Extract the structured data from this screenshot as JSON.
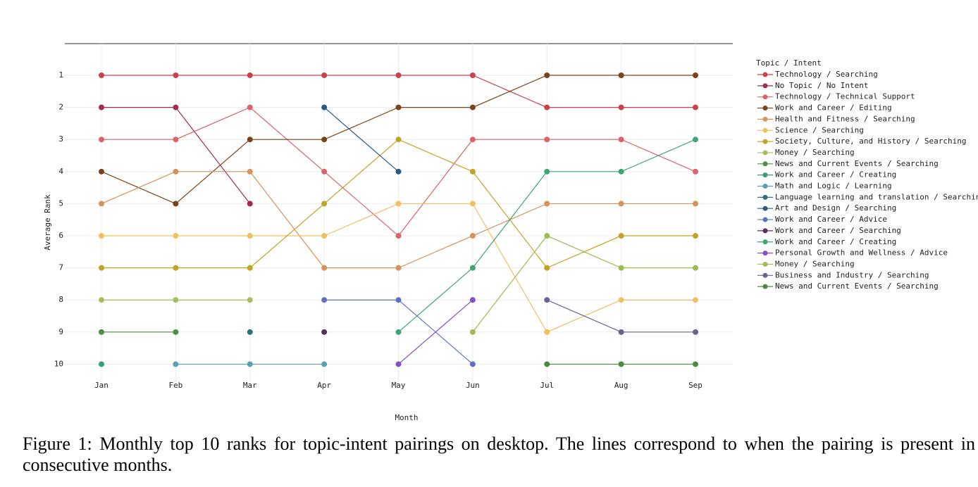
{
  "chart_data": {
    "type": "line",
    "x_label": "Month",
    "y_label": "Average Rank",
    "legend_title": "Topic / Intent",
    "categories": [
      "Jan",
      "Feb",
      "Mar",
      "Apr",
      "May",
      "Jun",
      "Jul",
      "Aug",
      "Sep"
    ],
    "ylim": [
      10.6,
      0
    ],
    "yticks": [
      1,
      2,
      3,
      4,
      5,
      6,
      7,
      8,
      9,
      10
    ],
    "grid": true,
    "legend": "right",
    "series": [
      {
        "name": "Technology / Searching",
        "color": "#c8414b",
        "values": [
          1,
          1,
          1,
          1,
          1,
          1,
          2,
          2,
          2
        ]
      },
      {
        "name": "No Topic / No Intent",
        "color": "#a02c55",
        "values": [
          2,
          2,
          5,
          null,
          null,
          null,
          null,
          null,
          null
        ]
      },
      {
        "name": "Technology / Technical Support",
        "color": "#db6269",
        "values": [
          3,
          3,
          2,
          4,
          6,
          3,
          3,
          3,
          4
        ]
      },
      {
        "name": "Work and Career / Editing",
        "color": "#7a4219",
        "values": [
          4,
          5,
          3,
          3,
          2,
          2,
          1,
          1,
          1
        ]
      },
      {
        "name": "Health and Fitness / Searching",
        "color": "#d3935a",
        "values": [
          5,
          4,
          4,
          7,
          7,
          6,
          5,
          5,
          5
        ]
      },
      {
        "name": "Science / Searching",
        "color": "#efc063",
        "values": [
          6,
          6,
          6,
          6,
          5,
          5,
          9,
          8,
          8
        ]
      },
      {
        "name": "Society, Culture, and History / Searching",
        "color": "#c1a425",
        "values": [
          7,
          7,
          7,
          5,
          3,
          4,
          7,
          6,
          6
        ]
      },
      {
        "name": "Money / Searching",
        "color": "#a6bf5e",
        "values": [
          8,
          8,
          8,
          null,
          null,
          null,
          null,
          null,
          null
        ]
      },
      {
        "name": "News and Current Events / Searching",
        "color": "#4f8e44",
        "values": [
          9,
          9,
          null,
          null,
          null,
          null,
          null,
          null,
          null
        ]
      },
      {
        "name": "Work and Career / Creating",
        "color": "#3b9e74",
        "values": [
          10,
          null,
          null,
          null,
          null,
          null,
          null,
          null,
          null
        ]
      },
      {
        "name": "Math and Logic / Learning",
        "color": "#5a9fb2",
        "values": [
          null,
          10,
          10,
          10,
          null,
          null,
          null,
          null,
          null
        ]
      },
      {
        "name": "Language learning and translation / Searching",
        "color": "#2f6f80",
        "values": [
          null,
          null,
          9,
          null,
          null,
          null,
          null,
          null,
          null
        ]
      },
      {
        "name": "Art and Design / Searching",
        "color": "#2a5a82",
        "values": [
          null,
          null,
          null,
          2,
          4,
          null,
          null,
          null,
          null
        ]
      },
      {
        "name": "Work and Career / Advice",
        "color": "#5f70c0",
        "values": [
          null,
          null,
          null,
          8,
          8,
          10,
          null,
          null,
          null
        ]
      },
      {
        "name": "Work and Career / Searching",
        "color": "#57305f",
        "values": [
          null,
          null,
          null,
          9,
          null,
          null,
          null,
          null,
          null
        ]
      },
      {
        "name": "Work and Career / Creating",
        "color": "#3ea577",
        "values": [
          null,
          null,
          null,
          null,
          9,
          7,
          4,
          4,
          3
        ]
      },
      {
        "name": "Personal Growth and Wellness / Advice",
        "color": "#8250c4",
        "values": [
          null,
          null,
          null,
          null,
          10,
          8,
          null,
          null,
          null
        ]
      },
      {
        "name": "Money / Searching",
        "color": "#a0bb52",
        "values": [
          null,
          null,
          null,
          null,
          null,
          9,
          6,
          7,
          7
        ]
      },
      {
        "name": "Business and Industry / Searching",
        "color": "#6a6290",
        "values": [
          null,
          null,
          null,
          null,
          null,
          null,
          8,
          9,
          9
        ]
      },
      {
        "name": "News and Current Events / Searching",
        "color": "#4d8a3f",
        "values": [
          null,
          null,
          null,
          null,
          null,
          null,
          10,
          10,
          10
        ]
      }
    ]
  },
  "caption": "Figure 1: Monthly top 10 ranks for topic-intent pairings on desktop. The lines correspond to when the pairing is present in consecutive months."
}
